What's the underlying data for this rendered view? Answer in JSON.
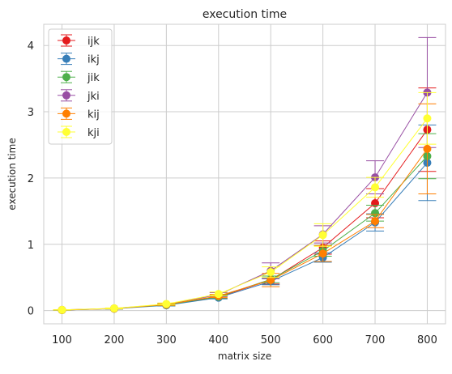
{
  "chart_data": {
    "type": "line",
    "title": "execution time",
    "xlabel": "matrix size",
    "ylabel": "execution time",
    "x": [
      100,
      200,
      300,
      400,
      500,
      600,
      700,
      800
    ],
    "xlim": [
      65,
      835
    ],
    "ylim": [
      -0.2,
      4.32
    ],
    "xticks": [
      100,
      200,
      300,
      400,
      500,
      600,
      700,
      800
    ],
    "yticks": [
      0,
      1,
      2,
      3,
      4
    ],
    "grid": true,
    "legend_position": "top-left",
    "series": [
      {
        "name": "ijk",
        "color": "#e41a1c",
        "values": [
          0.008,
          0.03,
          0.085,
          0.205,
          0.46,
          0.95,
          1.62,
          2.73
        ],
        "errors": [
          0.002,
          0.006,
          0.015,
          0.025,
          0.06,
          0.1,
          0.22,
          0.63
        ]
      },
      {
        "name": "ikj",
        "color": "#377eb8",
        "values": [
          0.007,
          0.028,
          0.08,
          0.195,
          0.44,
          0.8,
          1.33,
          2.23
        ],
        "errors": [
          0.002,
          0.006,
          0.012,
          0.02,
          0.05,
          0.07,
          0.13,
          0.57
        ]
      },
      {
        "name": "jik",
        "color": "#4daf4a",
        "values": [
          0.008,
          0.03,
          0.085,
          0.21,
          0.47,
          0.9,
          1.47,
          2.33
        ],
        "errors": [
          0.002,
          0.006,
          0.012,
          0.02,
          0.05,
          0.08,
          0.12,
          0.34
        ]
      },
      {
        "name": "jki",
        "color": "#984ea3",
        "values": [
          0.01,
          0.032,
          0.095,
          0.24,
          0.6,
          1.15,
          2.01,
          3.29
        ],
        "errors": [
          0.002,
          0.006,
          0.015,
          0.03,
          0.12,
          0.13,
          0.25,
          0.83
        ]
      },
      {
        "name": "kij",
        "color": "#ff7f00",
        "values": [
          0.008,
          0.03,
          0.09,
          0.22,
          0.46,
          0.86,
          1.35,
          2.44
        ],
        "errors": [
          0.002,
          0.006,
          0.012,
          0.025,
          0.1,
          0.12,
          0.1,
          0.68
        ]
      },
      {
        "name": "kji",
        "color": "#ffff33",
        "values": [
          0.01,
          0.033,
          0.1,
          0.25,
          0.58,
          1.14,
          1.86,
          2.9
        ],
        "errors": [
          0.002,
          0.006,
          0.015,
          0.03,
          0.08,
          0.17,
          0.15,
          0.39
        ]
      }
    ]
  }
}
